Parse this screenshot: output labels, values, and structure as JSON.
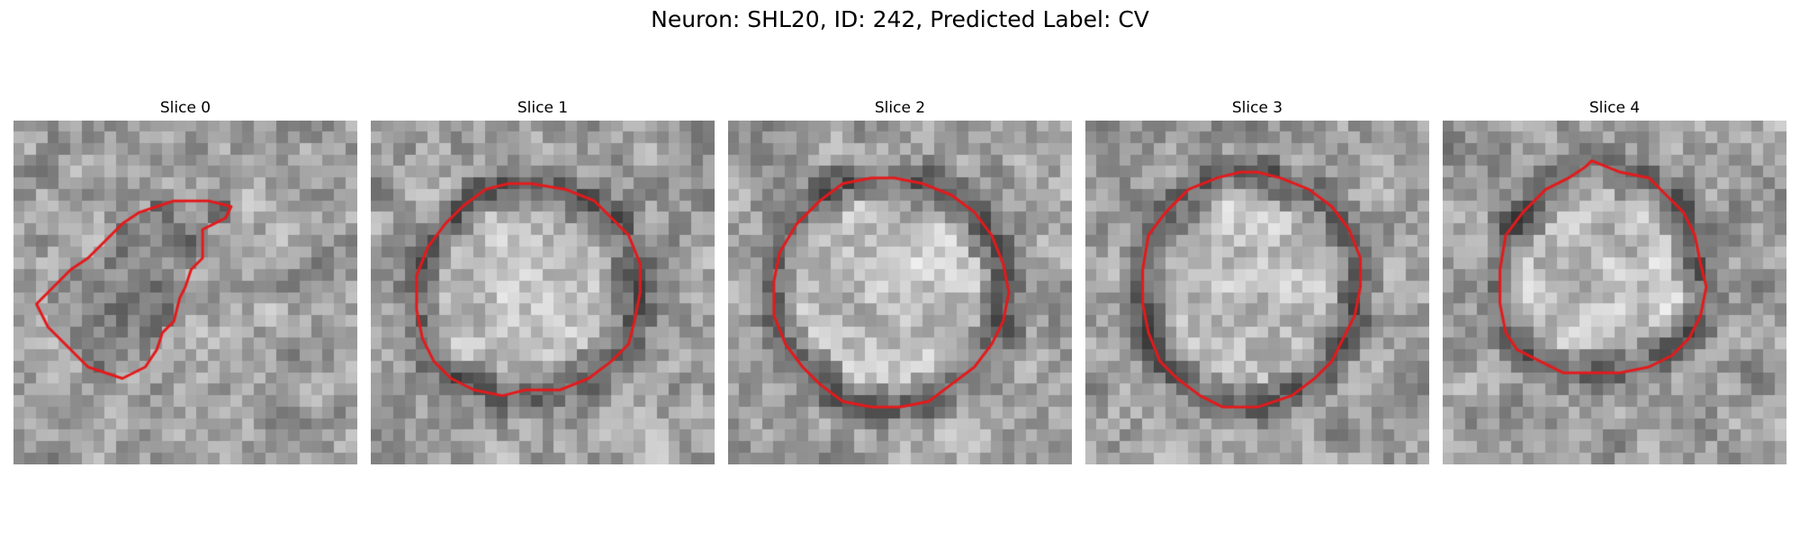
{
  "figure": {
    "title": "Neuron: SHL20, ID: 242, Predicted Label: CV"
  },
  "contour_color": "#e31a1c",
  "colormap": "gray",
  "panels": [
    {
      "title": "Slice 0",
      "seed": 11,
      "contour": [
        [
          19.0,
          7.5
        ],
        [
          18.5,
          8.5
        ],
        [
          17.5,
          9.0
        ],
        [
          16.5,
          9.5
        ],
        [
          16.5,
          12.0
        ],
        [
          15.5,
          13.0
        ],
        [
          15.0,
          14.5
        ],
        [
          14.5,
          15.5
        ],
        [
          14.0,
          17.5
        ],
        [
          13.0,
          18.5
        ],
        [
          12.5,
          20.0
        ],
        [
          11.5,
          21.5
        ],
        [
          9.5,
          22.5
        ],
        [
          6.5,
          21.5
        ],
        [
          4.5,
          19.5
        ],
        [
          3.0,
          18.0
        ],
        [
          2.0,
          16.0
        ],
        [
          3.0,
          15.0
        ],
        [
          4.0,
          14.0
        ],
        [
          5.0,
          13.0
        ],
        [
          6.5,
          12.0
        ],
        [
          8.0,
          10.5
        ],
        [
          9.5,
          9.0
        ],
        [
          11.0,
          8.0
        ],
        [
          12.5,
          7.5
        ],
        [
          14.0,
          7.0
        ],
        [
          17.0,
          7.0
        ]
      ]
    },
    {
      "title": "Slice 1",
      "seed": 23,
      "contour": [
        [
          14.0,
          5.5
        ],
        [
          17.0,
          6.0
        ],
        [
          19.5,
          7.0
        ],
        [
          21.0,
          8.5
        ],
        [
          22.5,
          10.0
        ],
        [
          23.5,
          12.5
        ],
        [
          23.5,
          15.0
        ],
        [
          23.0,
          17.5
        ],
        [
          22.5,
          19.5
        ],
        [
          21.0,
          21.0
        ],
        [
          19.0,
          22.5
        ],
        [
          16.5,
          23.5
        ],
        [
          13.5,
          23.5
        ],
        [
          11.5,
          24.0
        ],
        [
          9.0,
          23.5
        ],
        [
          7.0,
          22.5
        ],
        [
          5.5,
          21.0
        ],
        [
          4.5,
          19.0
        ],
        [
          4.0,
          16.5
        ],
        [
          4.0,
          13.5
        ],
        [
          5.0,
          11.0
        ],
        [
          6.5,
          9.0
        ],
        [
          8.0,
          7.5
        ],
        [
          10.0,
          6.0
        ],
        [
          12.0,
          5.5
        ]
      ]
    },
    {
      "title": "Slice 2",
      "seed": 37,
      "contour": [
        [
          14.5,
          5.0
        ],
        [
          17.0,
          5.5
        ],
        [
          19.5,
          6.5
        ],
        [
          21.5,
          8.0
        ],
        [
          23.0,
          10.0
        ],
        [
          24.0,
          12.5
        ],
        [
          24.5,
          15.0
        ],
        [
          24.0,
          17.5
        ],
        [
          23.0,
          19.5
        ],
        [
          21.5,
          21.5
        ],
        [
          19.5,
          23.0
        ],
        [
          17.5,
          24.5
        ],
        [
          15.0,
          25.0
        ],
        [
          12.5,
          25.0
        ],
        [
          10.0,
          24.5
        ],
        [
          8.0,
          23.0
        ],
        [
          6.5,
          21.5
        ],
        [
          5.0,
          19.5
        ],
        [
          4.0,
          17.0
        ],
        [
          4.0,
          14.0
        ],
        [
          4.5,
          11.5
        ],
        [
          6.0,
          9.0
        ],
        [
          8.0,
          7.0
        ],
        [
          10.0,
          5.5
        ],
        [
          12.5,
          5.0
        ]
      ]
    },
    {
      "title": "Slice 3",
      "seed": 53,
      "contour": [
        [
          15.0,
          4.5
        ],
        [
          17.0,
          5.0
        ],
        [
          19.5,
          6.0
        ],
        [
          21.5,
          7.5
        ],
        [
          23.0,
          9.5
        ],
        [
          24.0,
          12.0
        ],
        [
          24.0,
          14.5
        ],
        [
          23.5,
          17.0
        ],
        [
          22.5,
          19.0
        ],
        [
          21.5,
          21.0
        ],
        [
          20.0,
          22.5
        ],
        [
          18.0,
          24.0
        ],
        [
          15.0,
          25.0
        ],
        [
          12.0,
          25.0
        ],
        [
          10.0,
          24.0
        ],
        [
          8.0,
          22.5
        ],
        [
          6.5,
          21.0
        ],
        [
          5.5,
          18.5
        ],
        [
          5.0,
          16.0
        ],
        [
          5.0,
          13.0
        ],
        [
          5.5,
          10.0
        ],
        [
          7.0,
          8.0
        ],
        [
          9.0,
          6.0
        ],
        [
          11.5,
          5.0
        ],
        [
          13.5,
          4.5
        ]
      ]
    },
    {
      "title": "Slice 4",
      "seed": 71,
      "contour": [
        [
          13.0,
          3.5
        ],
        [
          15.5,
          4.5
        ],
        [
          18.0,
          5.0
        ],
        [
          19.5,
          6.5
        ],
        [
          21.0,
          8.0
        ],
        [
          22.0,
          10.0
        ],
        [
          22.5,
          12.5
        ],
        [
          23.0,
          14.5
        ],
        [
          22.5,
          17.0
        ],
        [
          21.5,
          19.0
        ],
        [
          20.0,
          20.5
        ],
        [
          18.0,
          21.5
        ],
        [
          15.5,
          22.0
        ],
        [
          13.0,
          22.0
        ],
        [
          10.5,
          22.0
        ],
        [
          8.5,
          21.0
        ],
        [
          6.5,
          20.0
        ],
        [
          5.5,
          18.5
        ],
        [
          5.0,
          16.0
        ],
        [
          5.0,
          13.0
        ],
        [
          5.5,
          10.0
        ],
        [
          7.0,
          8.0
        ],
        [
          9.0,
          6.0
        ],
        [
          11.0,
          5.0
        ],
        [
          12.5,
          4.0
        ]
      ]
    }
  ]
}
